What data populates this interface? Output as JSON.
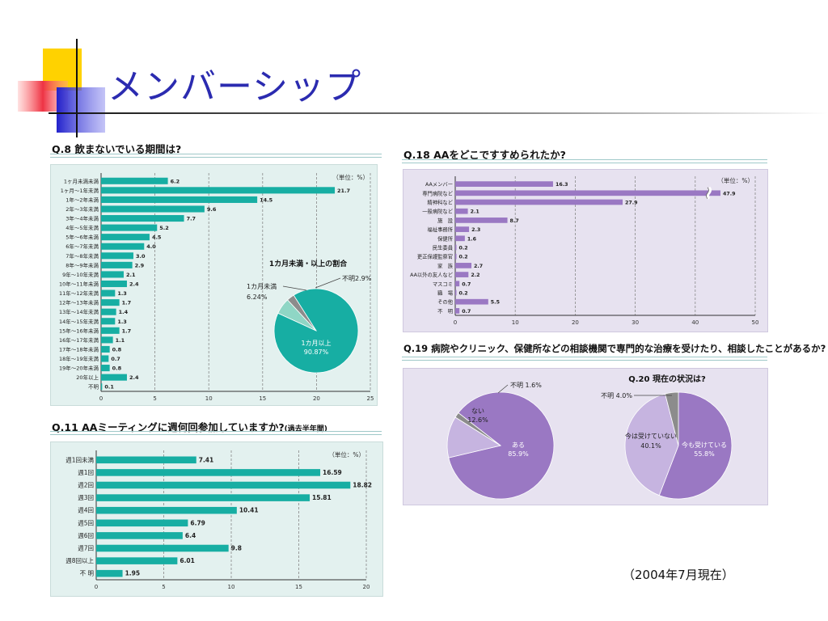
{
  "slide": {
    "title": "メンバーシップ",
    "date_note": "（2004年7月現在）"
  },
  "colors": {
    "teal": "#17aea3",
    "teal_light": "#8fd6c5",
    "purple": "#9a78c3",
    "purple_light": "#c6b4e0",
    "gray": "#8c8c8c",
    "title_blue": "#2b2bb0"
  },
  "q8": {
    "title": "Q.8  飲まないでいる期間は?",
    "unit": "（単位：%）",
    "chart_data": {
      "type": "bar",
      "orientation": "horizontal",
      "categories": [
        "1ヶ月未満未満",
        "1ヶ月〜1年未満",
        "1年〜2年未満",
        "2年〜3年未満",
        "3年〜4年未満",
        "4年〜5年未満",
        "5年〜6年未満",
        "6年〜7年未満",
        "7年〜8年未満",
        "8年〜9年未満",
        "9年〜10年未満",
        "10年〜11年未満",
        "11年〜12年未満",
        "12年〜13年未満",
        "13年〜14年未満",
        "14年〜15年未満",
        "15年〜16年未満",
        "16年〜17年未満",
        "17年〜18年未満",
        "18年〜19年未満",
        "19年〜20年未満",
        "20年以上",
        "不明"
      ],
      "values": [
        6.2,
        21.7,
        14.5,
        9.6,
        7.7,
        5.2,
        4.5,
        4.0,
        3.0,
        2.9,
        2.1,
        2.4,
        1.3,
        1.7,
        1.4,
        1.3,
        1.7,
        1.1,
        0.8,
        0.7,
        0.8,
        2.4,
        0.1
      ],
      "value_labels": [
        "6.2",
        "21.7",
        "14.5",
        "9.6",
        "7.7",
        "5.2",
        "4.5",
        "4.0",
        "3.0",
        "2.9",
        "2.1",
        "2.4",
        "1.3",
        "1.7",
        "1.4",
        "1.3",
        "1.7",
        "1.1",
        "0.8",
        "0.7",
        "0.8",
        "2.4",
        "0.1"
      ],
      "xlim": [
        0,
        25
      ],
      "ticks": [
        "0",
        "5",
        "10",
        "15",
        "20",
        "25"
      ]
    },
    "pie": {
      "title": "1カ月未満・以上の割合",
      "chart_data": {
        "type": "pie",
        "slices": [
          {
            "label": "1カ月以上",
            "value": 90.87,
            "value_label": "90.87%"
          },
          {
            "label": "1カ月未満",
            "value": 6.24,
            "value_label": "6.24%"
          },
          {
            "label": "不明2.9%",
            "value": 2.9
          }
        ]
      }
    }
  },
  "q11": {
    "title": "Q.11  AAミーティングに週何回参加していますか?",
    "title_suffix": "(過去半年間)",
    "unit": "（単位：%）",
    "chart_data": {
      "type": "bar",
      "orientation": "horizontal",
      "categories": [
        "週1回未満",
        "週1回",
        "週2回",
        "週3回",
        "週4回",
        "週5回",
        "週6回",
        "週7回",
        "週8回以上",
        "不 明"
      ],
      "values": [
        7.41,
        16.59,
        18.82,
        15.81,
        10.41,
        6.79,
        6.4,
        9.8,
        6.01,
        1.95
      ],
      "value_labels": [
        "7.41",
        "16.59",
        "18.82",
        "15.81",
        "10.41",
        "6.79",
        "6.4",
        "9.8",
        "6.01",
        "1.95"
      ],
      "xlim": [
        0,
        20
      ],
      "ticks": [
        "0",
        "5",
        "10",
        "15",
        "20"
      ]
    }
  },
  "q18": {
    "title": "Q.18  AAをどこですすめられたか?",
    "unit": "（単位：%）",
    "chart_data": {
      "type": "bar",
      "orientation": "horizontal",
      "categories": [
        "AAメンバー",
        "専門病院など",
        "精神科など",
        "一般病院など",
        "施　設",
        "福祉事務所",
        "保健所",
        "民生委員",
        "更正保護監察官",
        "家　族",
        "AA以外の友人など",
        "マスコミ",
        "職　場",
        "その他",
        "不　明"
      ],
      "values": [
        16.3,
        47.9,
        27.9,
        2.1,
        8.7,
        2.3,
        1.6,
        0.2,
        0.2,
        2.7,
        2.2,
        0.7,
        0.2,
        5.5,
        0.7
      ],
      "value_labels": [
        "16.3",
        "47.9",
        "27.9",
        "2.1",
        "8.7",
        "2.3",
        "1.6",
        "0.2",
        "0.2",
        "2.7",
        "2.2",
        "0.7",
        "0.2",
        "5.5",
        "0.7"
      ],
      "xlim": [
        0,
        50
      ],
      "axis_break": true,
      "ticks": [
        "0",
        "10",
        "20",
        "30",
        "40",
        "50"
      ]
    }
  },
  "q19": {
    "title": "Q.19  病院やクリニック、保健所などの相談機関で専門的な治療を受けたり、相談したことがあるか?",
    "chart_data": {
      "type": "pie",
      "slices": [
        {
          "label": "ある",
          "value": 85.9,
          "value_label": "85.9%"
        },
        {
          "label": "ない",
          "value": 12.6,
          "value_label": "12.6%"
        },
        {
          "label": "不明 1.6%",
          "value": 1.6
        }
      ]
    }
  },
  "q20": {
    "title": "Q.20  現在の状況は?",
    "chart_data": {
      "type": "pie",
      "slices": [
        {
          "label": "今も受けている",
          "value": 55.8,
          "value_label": "55.8%"
        },
        {
          "label": "今は受けていない",
          "value": 40.1,
          "value_label": "40.1%"
        },
        {
          "label": "不明 4.0%",
          "value": 4.0
        }
      ]
    }
  }
}
